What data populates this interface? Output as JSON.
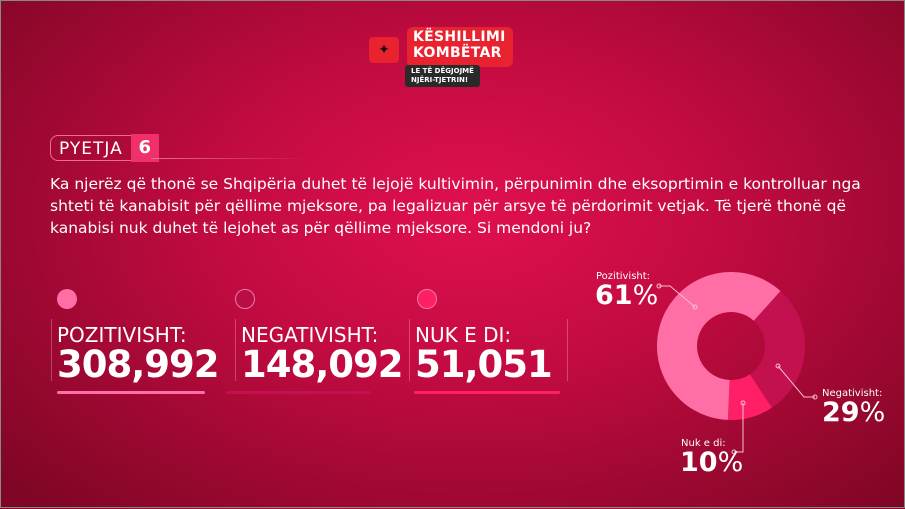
{
  "logo": {
    "line1": "KËSHILLIMI",
    "line2": "KOMBËTAR",
    "tag1": "LE TË DËGJOJMË",
    "tag2": "NJËRI-TJETRIN!",
    "flag_icon": "albanian-eagle"
  },
  "question": {
    "label": "PYETJA",
    "number": "6",
    "lines": [
      "Ka njerëz që thonë se Shqipëria duhet të lejojë kultivimin, përpunimin dhe eksoprtimin e kontrolluar nga",
      "shteti të kanabisit për qëllime mjeksore, pa legalizuar për arsye të përdorimit vetjak. Të tjerë thonë që",
      "kanabisi nuk duhet të lejohet as për qëllime mjeksore. Si mendoni ju?"
    ]
  },
  "stats": [
    {
      "label": "POZITIVISHT:",
      "value": "308,992",
      "color": "#ff6fa6"
    },
    {
      "label": "NEGATIVISHT:",
      "value": "148,092",
      "color": "#c3104f"
    },
    {
      "label": "NUK E DI:",
      "value": "51,051",
      "color": "#ff1f66"
    }
  ],
  "chart_data": {
    "type": "pie",
    "donut": true,
    "slices": [
      {
        "name": "Pozitivisht:",
        "value": 61,
        "label": "61",
        "color": "#ff6fa6"
      },
      {
        "name": "Negativisht:",
        "value": 29,
        "label": "29",
        "color": "#c3104f"
      },
      {
        "name": "Nuk e di:",
        "value": 10,
        "label": "10",
        "color": "#ff1f66"
      }
    ],
    "unit": "%"
  }
}
